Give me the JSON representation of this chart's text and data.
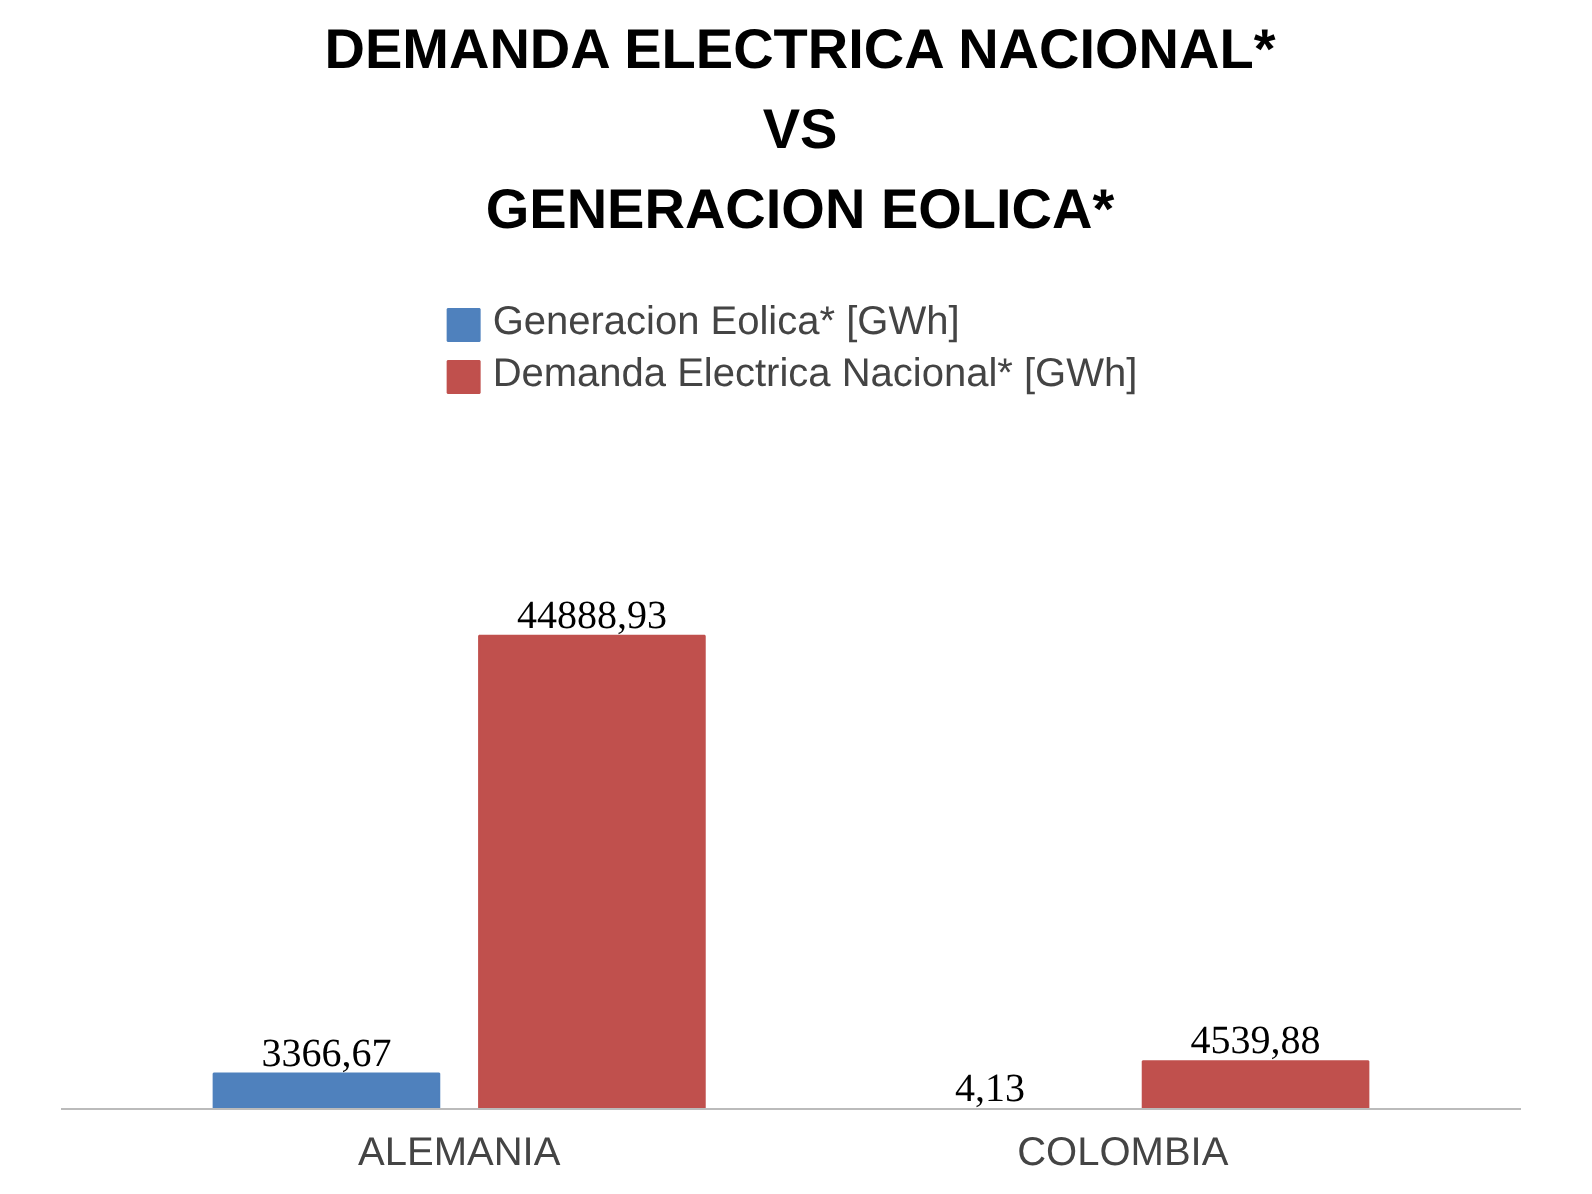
{
  "chart_data": {
    "type": "bar",
    "title": "DEMANDA ELECTRICA NACIONAL*\nVS\nGENERACION EOLICA*",
    "categories": [
      "ALEMANIA",
      "COLOMBIA"
    ],
    "series": [
      {
        "name": "Generacion Eolica* [GWh]",
        "color": "#4f81bd",
        "values": [
          3366.67,
          4.13
        ],
        "value_labels": [
          "3366,67",
          "4,13"
        ]
      },
      {
        "name": "Demanda Electrica Nacional* [GWh]",
        "color": "#c0504d",
        "values": [
          44888.93,
          4539.88
        ],
        "value_labels": [
          "44888,93",
          "4539,88"
        ]
      }
    ],
    "legend": "top",
    "tick_labels": "x"
  }
}
